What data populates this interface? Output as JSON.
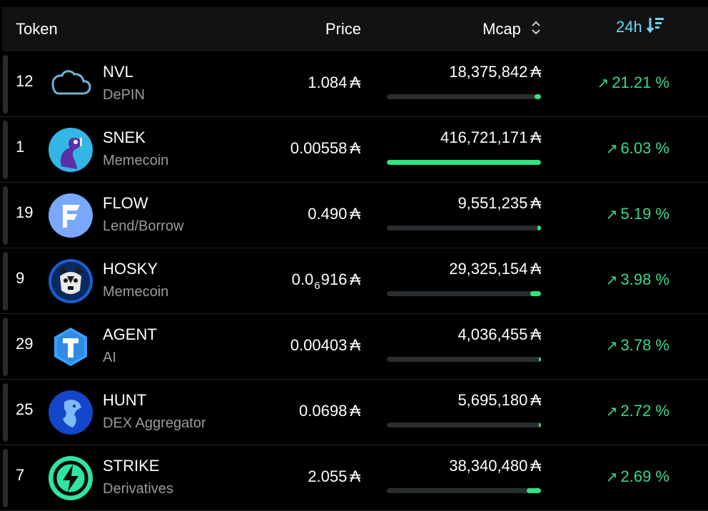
{
  "header": {
    "token_label": "Token",
    "price_label": "Price",
    "mcap_label": "Mcap",
    "change_label": "24h"
  },
  "currency_symbol": "₳",
  "accent_color": "#2ee57d",
  "header_accent_color": "#6fd3f7",
  "rows": [
    {
      "rank": "12",
      "name": "NVL",
      "category": "DePIN",
      "price": "1.084",
      "price_sub": null,
      "mcap": "18,375,842",
      "mcap_fraction": 0.044,
      "change": "21.21 %",
      "logo": "cloud-icon"
    },
    {
      "rank": "1",
      "name": "SNEK",
      "category": "Memecoin",
      "price": "0.00558",
      "price_sub": null,
      "mcap": "416,721,171",
      "mcap_fraction": 1.0,
      "change": "6.03 %",
      "logo": "snek-logo"
    },
    {
      "rank": "19",
      "name": "FLOW",
      "category": "Lend/Borrow",
      "price": "0.490",
      "price_sub": null,
      "mcap": "9,551,235",
      "mcap_fraction": 0.023,
      "change": "5.19 %",
      "logo": "flow-logo"
    },
    {
      "rank": "9",
      "name": "HOSKY",
      "category": "Memecoin",
      "price_pre": "0.0",
      "price_sub": "6",
      "price_post": "916",
      "mcap": "29,325,154",
      "mcap_fraction": 0.07,
      "change": "3.98 %",
      "logo": "hosky-logo"
    },
    {
      "rank": "29",
      "name": "AGENT",
      "category": "AI",
      "price": "0.00403",
      "price_sub": null,
      "mcap": "4,036,455",
      "mcap_fraction": 0.01,
      "change": "3.78 %",
      "logo": "agent-logo"
    },
    {
      "rank": "25",
      "name": "HUNT",
      "category": "DEX Aggregator",
      "price": "0.0698",
      "price_sub": null,
      "mcap": "5,695,180",
      "mcap_fraction": 0.014,
      "change": "2.72 %",
      "logo": "hunt-logo"
    },
    {
      "rank": "7",
      "name": "STRIKE",
      "category": "Derivatives",
      "price": "2.055",
      "price_sub": null,
      "mcap": "38,340,480",
      "mcap_fraction": 0.092,
      "change": "2.69 %",
      "logo": "strike-logo"
    }
  ]
}
